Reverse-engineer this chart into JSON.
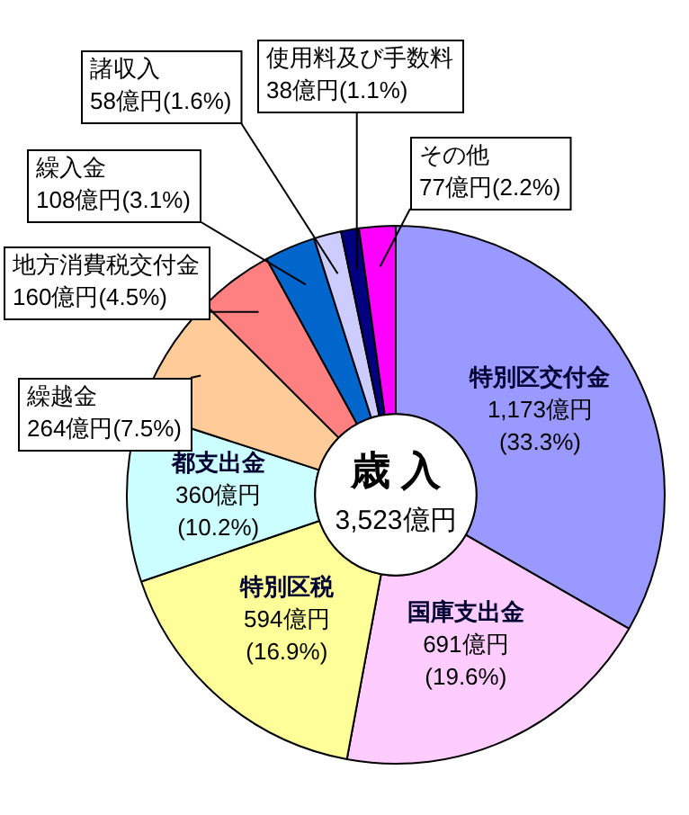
{
  "chart_data": {
    "type": "donut",
    "title": "歳 入",
    "subtitle": "3,523億円",
    "categories": [
      "特別区交付金",
      "国庫支出金",
      "特別区税",
      "都支出金",
      "繰越金",
      "地方消費税交付金",
      "繰入金",
      "諸収入",
      "使用料及び手数料",
      "その他"
    ],
    "values": [
      1173,
      691,
      594,
      360,
      264,
      160,
      108,
      58,
      38,
      77
    ],
    "value_labels": [
      "1,173億円(33.3%)",
      "691億円(19.6%)",
      "594億円(16.9%)",
      "360億円(10.2%)",
      "264億円(7.5%)",
      "160億円(4.5%)",
      "108億円(3.1%)",
      "58億円(1.6%)",
      "38億円(1.1%)",
      "77億円(2.2%)"
    ],
    "colors": [
      "#9999ff",
      "#ffccff",
      "#ffff99",
      "#ccffff",
      "#ffcc99",
      "#ff8080",
      "#0066cc",
      "#ccccff",
      "#000080",
      "#ff00ff"
    ],
    "legend": false
  }
}
